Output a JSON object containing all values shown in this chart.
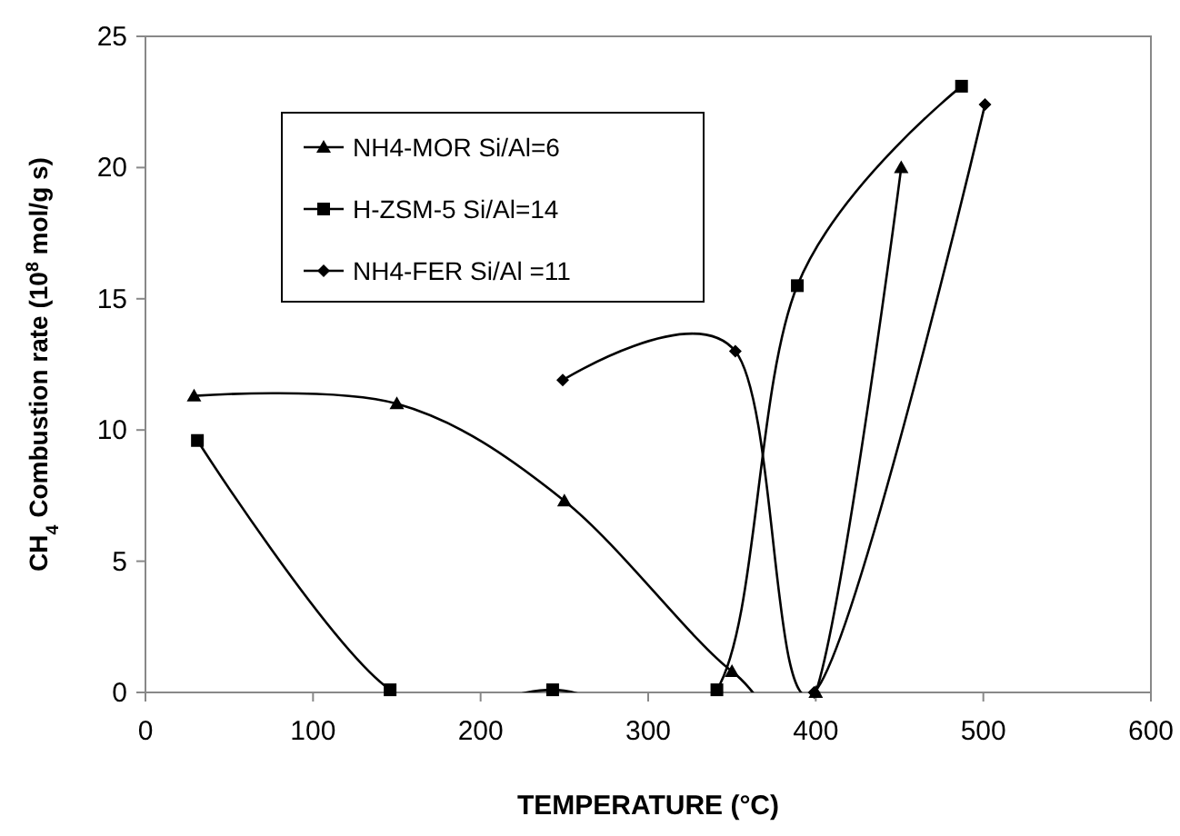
{
  "chart_data": {
    "type": "line",
    "xlabel": "TEMPERATURE (°C)",
    "ylabel": "CH$_{4}$ Combustion rate (10$^{8}$ mol/g s)",
    "xlim": [
      0,
      600
    ],
    "ylim": [
      0,
      25
    ],
    "xticks": [
      0,
      100,
      200,
      300,
      400,
      500,
      600
    ],
    "yticks": [
      0,
      5,
      10,
      15,
      20,
      25
    ],
    "grid": false,
    "legend": "top left",
    "line_style": "solid",
    "series": [
      {
        "name": "NH4-MOR Si/Al=6",
        "color": "#000000",
        "marker": "triangle",
        "x": [
          29,
          150,
          250,
          350,
          400,
          451
        ],
        "values": [
          11.3,
          11.0,
          7.3,
          0.8,
          0,
          20.0
        ]
      },
      {
        "name": "H-ZSM-5 Si/Al=14",
        "color": "#000000",
        "marker": "square",
        "x": [
          31,
          146,
          243,
          341,
          389,
          487
        ],
        "values": [
          9.6,
          0.1,
          0.1,
          0.1,
          15.5,
          23.1
        ]
      },
      {
        "name": "NH4-FER Si/Al =11",
        "color": "#000000",
        "marker": "diamond",
        "x": [
          249,
          352,
          399,
          501
        ],
        "values": [
          11.9,
          13.0,
          0,
          22.4
        ]
      }
    ]
  }
}
